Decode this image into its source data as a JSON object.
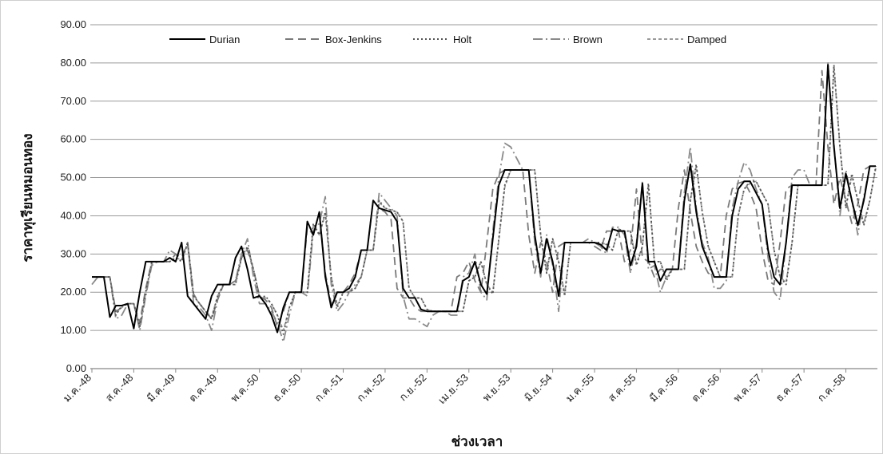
{
  "chart_data": {
    "type": "line",
    "title": "",
    "xlabel": "ช่วงเวลา",
    "ylabel": "ราคาทุเรียนหมอนทอง",
    "ylim": [
      0,
      90
    ],
    "y_ticks": [
      "0.00",
      "10.00",
      "20.00",
      "30.00",
      "40.00",
      "50.00",
      "60.00",
      "70.00",
      "80.00",
      "90.00"
    ],
    "grid": "horizontal",
    "legend_position": "top",
    "x_tick_labels": [
      "ม.ค.-48",
      "ส.ค.-48",
      "มี.ค.-49",
      "ต.ค.-49",
      "พ.ค.-50",
      "ธ.ค.-50",
      "ก.ค.-51",
      "ก.พ.-52",
      "ก.ย.-52",
      "เม.ย.-53",
      "พ.ย.-53",
      "มิ.ย.-54",
      "ม.ค.-55",
      "ส.ค.-55",
      "มี.ค.-56",
      "ต.ค.-56",
      "พ.ค.-57",
      "ธ.ค.-57",
      "ก.ค.-58"
    ],
    "x_tick_interval": 7,
    "series": [
      {
        "name": "Durian",
        "color": "#000000",
        "dash": "solid",
        "values": [
          24,
          24,
          24,
          13.5,
          16.5,
          16.5,
          17,
          10.5,
          20,
          28,
          28,
          28,
          28,
          29,
          28,
          33,
          19,
          17,
          15,
          13,
          19,
          22,
          22,
          22,
          29,
          32,
          26,
          18.5,
          19,
          17,
          14,
          9.5,
          16,
          20,
          20,
          20,
          38.5,
          35,
          41,
          24,
          16,
          20,
          20,
          21,
          24,
          31,
          31,
          44,
          42,
          41.5,
          41,
          38.5,
          21,
          18.5,
          18.5,
          15.5,
          15,
          15,
          15,
          15,
          15,
          15,
          23,
          24,
          28,
          22,
          19.5,
          34,
          48,
          52,
          52,
          52,
          52,
          52,
          35,
          25,
          34,
          28,
          19,
          33,
          33,
          33,
          33,
          33,
          33,
          32.5,
          31,
          36.5,
          36,
          36,
          27,
          32,
          48.5,
          28,
          28,
          23,
          26,
          26,
          26,
          44,
          53.5,
          41,
          32,
          28,
          24,
          24,
          24,
          40,
          47,
          49,
          49,
          46,
          43,
          31,
          24,
          22,
          33,
          48,
          48,
          48,
          48,
          48,
          48,
          79.5,
          58,
          42,
          51,
          44,
          37.5,
          44,
          53,
          53
        ]
      },
      {
        "name": "Box-Jenkins",
        "color": "#7a7a7a",
        "dash": "10,6",
        "values": [
          24,
          24,
          24,
          24,
          15,
          16,
          17,
          17,
          12,
          21,
          28,
          28,
          28,
          28,
          30,
          29,
          33,
          19.5,
          17,
          15,
          13,
          18,
          22,
          22,
          23,
          29,
          31,
          26,
          19,
          18,
          16,
          11,
          15,
          20,
          20,
          20,
          37,
          35,
          41,
          25,
          17,
          20,
          20,
          22,
          25,
          31,
          31,
          44,
          42,
          41,
          39,
          21,
          18.5,
          18.5,
          16,
          15,
          15,
          15,
          15,
          15,
          15,
          24,
          25,
          28,
          23,
          20,
          33,
          47,
          51,
          52,
          52,
          52,
          52,
          35,
          25,
          33,
          28,
          20,
          32,
          33,
          33,
          33,
          33,
          33,
          32,
          31,
          36,
          36,
          36,
          28,
          31,
          47,
          29,
          28,
          24,
          26,
          26,
          26,
          42,
          52,
          41,
          32,
          28,
          25,
          24,
          24,
          40,
          47,
          48.5,
          49,
          46,
          42,
          31,
          23,
          22,
          33,
          47,
          48,
          48,
          48,
          48,
          48,
          78,
          58,
          43,
          50,
          44,
          38,
          43,
          52,
          53
        ]
      },
      {
        "name": "Holt",
        "color": "#555555",
        "dash": "2,3",
        "values": [
          24,
          24,
          24,
          24,
          14,
          16.5,
          17,
          17,
          11,
          20,
          28,
          28,
          28,
          28,
          29,
          28,
          33,
          19,
          17,
          15,
          13,
          19,
          22,
          22,
          22,
          29,
          32,
          26,
          18.5,
          19,
          17,
          14,
          9,
          16,
          20,
          20,
          20,
          38,
          35,
          41,
          24,
          16,
          20,
          20,
          21,
          24,
          31,
          31,
          44,
          42,
          41.5,
          41,
          38.5,
          21,
          18.5,
          18.5,
          15.5,
          15,
          15,
          15,
          15,
          15,
          15,
          23,
          24,
          28,
          22,
          19.5,
          34,
          48,
          52,
          52,
          52,
          52,
          52,
          35,
          25,
          34,
          28,
          19,
          33,
          33,
          33,
          33,
          33,
          33,
          32.5,
          31,
          36.5,
          36,
          36,
          27,
          32,
          48.5,
          28,
          28,
          23,
          26,
          26,
          26,
          44,
          53.5,
          41,
          32,
          28,
          24,
          24,
          24,
          40,
          47,
          49,
          49,
          46,
          43,
          31,
          24,
          22,
          33,
          48,
          48,
          48,
          48,
          48,
          48,
          79.5,
          58,
          42,
          51,
          44,
          37.5,
          44,
          53
        ]
      },
      {
        "name": "Brown",
        "color": "#8a8a8a",
        "dash": "12,4,2,4",
        "values": [
          22,
          24,
          24,
          24,
          13,
          14,
          17,
          17,
          10,
          19,
          27,
          28,
          28,
          31,
          30,
          28,
          33,
          17,
          16,
          14,
          10,
          18,
          22,
          22,
          23,
          30,
          34,
          24,
          17,
          17,
          15,
          12,
          7,
          14,
          20,
          20,
          19,
          36,
          38,
          45,
          22,
          15,
          17,
          20,
          22,
          24,
          31,
          31,
          46,
          44,
          42,
          40,
          19,
          13,
          13,
          12,
          11,
          14,
          15,
          15,
          14,
          14,
          24,
          25,
          30,
          20,
          18,
          36,
          50,
          59,
          58,
          55,
          52,
          52,
          33,
          24,
          35,
          27,
          15,
          33,
          33,
          33,
          33,
          34,
          33,
          32,
          30,
          37,
          37,
          35,
          25,
          33,
          49,
          26,
          27,
          20,
          24,
          26,
          26,
          46,
          58,
          42,
          33,
          29,
          21,
          21,
          23,
          42,
          49,
          54,
          52,
          47,
          43,
          29,
          20,
          18,
          33,
          50,
          52,
          52,
          48,
          48,
          48,
          80,
          59,
          40,
          52,
          44,
          35,
          45,
          53
        ]
      },
      {
        "name": "Damped",
        "color": "#9a9a9a",
        "dash": "4,3",
        "values": [
          24,
          24,
          24,
          24,
          14.5,
          16,
          17,
          17,
          11,
          20,
          27.5,
          28,
          28,
          28,
          29,
          28.5,
          32.5,
          19,
          17,
          15,
          13.5,
          19,
          22,
          22,
          22,
          29,
          31.5,
          26,
          19,
          18.5,
          17,
          14,
          10,
          16,
          20,
          20,
          20,
          37.5,
          35,
          40.5,
          24,
          16.5,
          20,
          20,
          21,
          24,
          31,
          31,
          43.5,
          42,
          41.5,
          41,
          38.5,
          21,
          18.5,
          18.5,
          15.5,
          15,
          15,
          15,
          15,
          15,
          15,
          23,
          24,
          28,
          22,
          20,
          33.5,
          47.5,
          52,
          52,
          52,
          52,
          52,
          35,
          25.5,
          34,
          28,
          19.5,
          33,
          33,
          33,
          33,
          33,
          33,
          32.5,
          31,
          36.5,
          36,
          36,
          27.5,
          32,
          48,
          28,
          28,
          23.5,
          26,
          26,
          26,
          44,
          53,
          41,
          32,
          28,
          24,
          24,
          24,
          40,
          47,
          48.5,
          49,
          46,
          43,
          31,
          24,
          22.5,
          33,
          48,
          48,
          48,
          48,
          48,
          48,
          79,
          58,
          42.5,
          50.5,
          44,
          38,
          44,
          52.5
        ]
      }
    ]
  }
}
